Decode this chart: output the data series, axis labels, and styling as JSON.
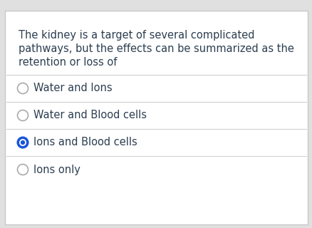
{
  "question_lines": [
    "The kidney is a target of several complicated",
    "pathways, but the effects can be summarized as the",
    "retention or loss of"
  ],
  "options": [
    "Water and Ions",
    "Water and Blood cells",
    "Ions and Blood cells",
    "Ions only"
  ],
  "selected_index": 2,
  "bg_color": "#ffffff",
  "border_color": "#c8c8c8",
  "outer_bg": "#e0e0e0",
  "text_color": "#2c3e50",
  "divider_color": "#d0d0d0",
  "radio_border_color": "#aaaaaa",
  "selected_fill": "#1a56db",
  "selected_border": "#1a56db",
  "question_fontsize": 10.5,
  "option_fontsize": 10.5
}
